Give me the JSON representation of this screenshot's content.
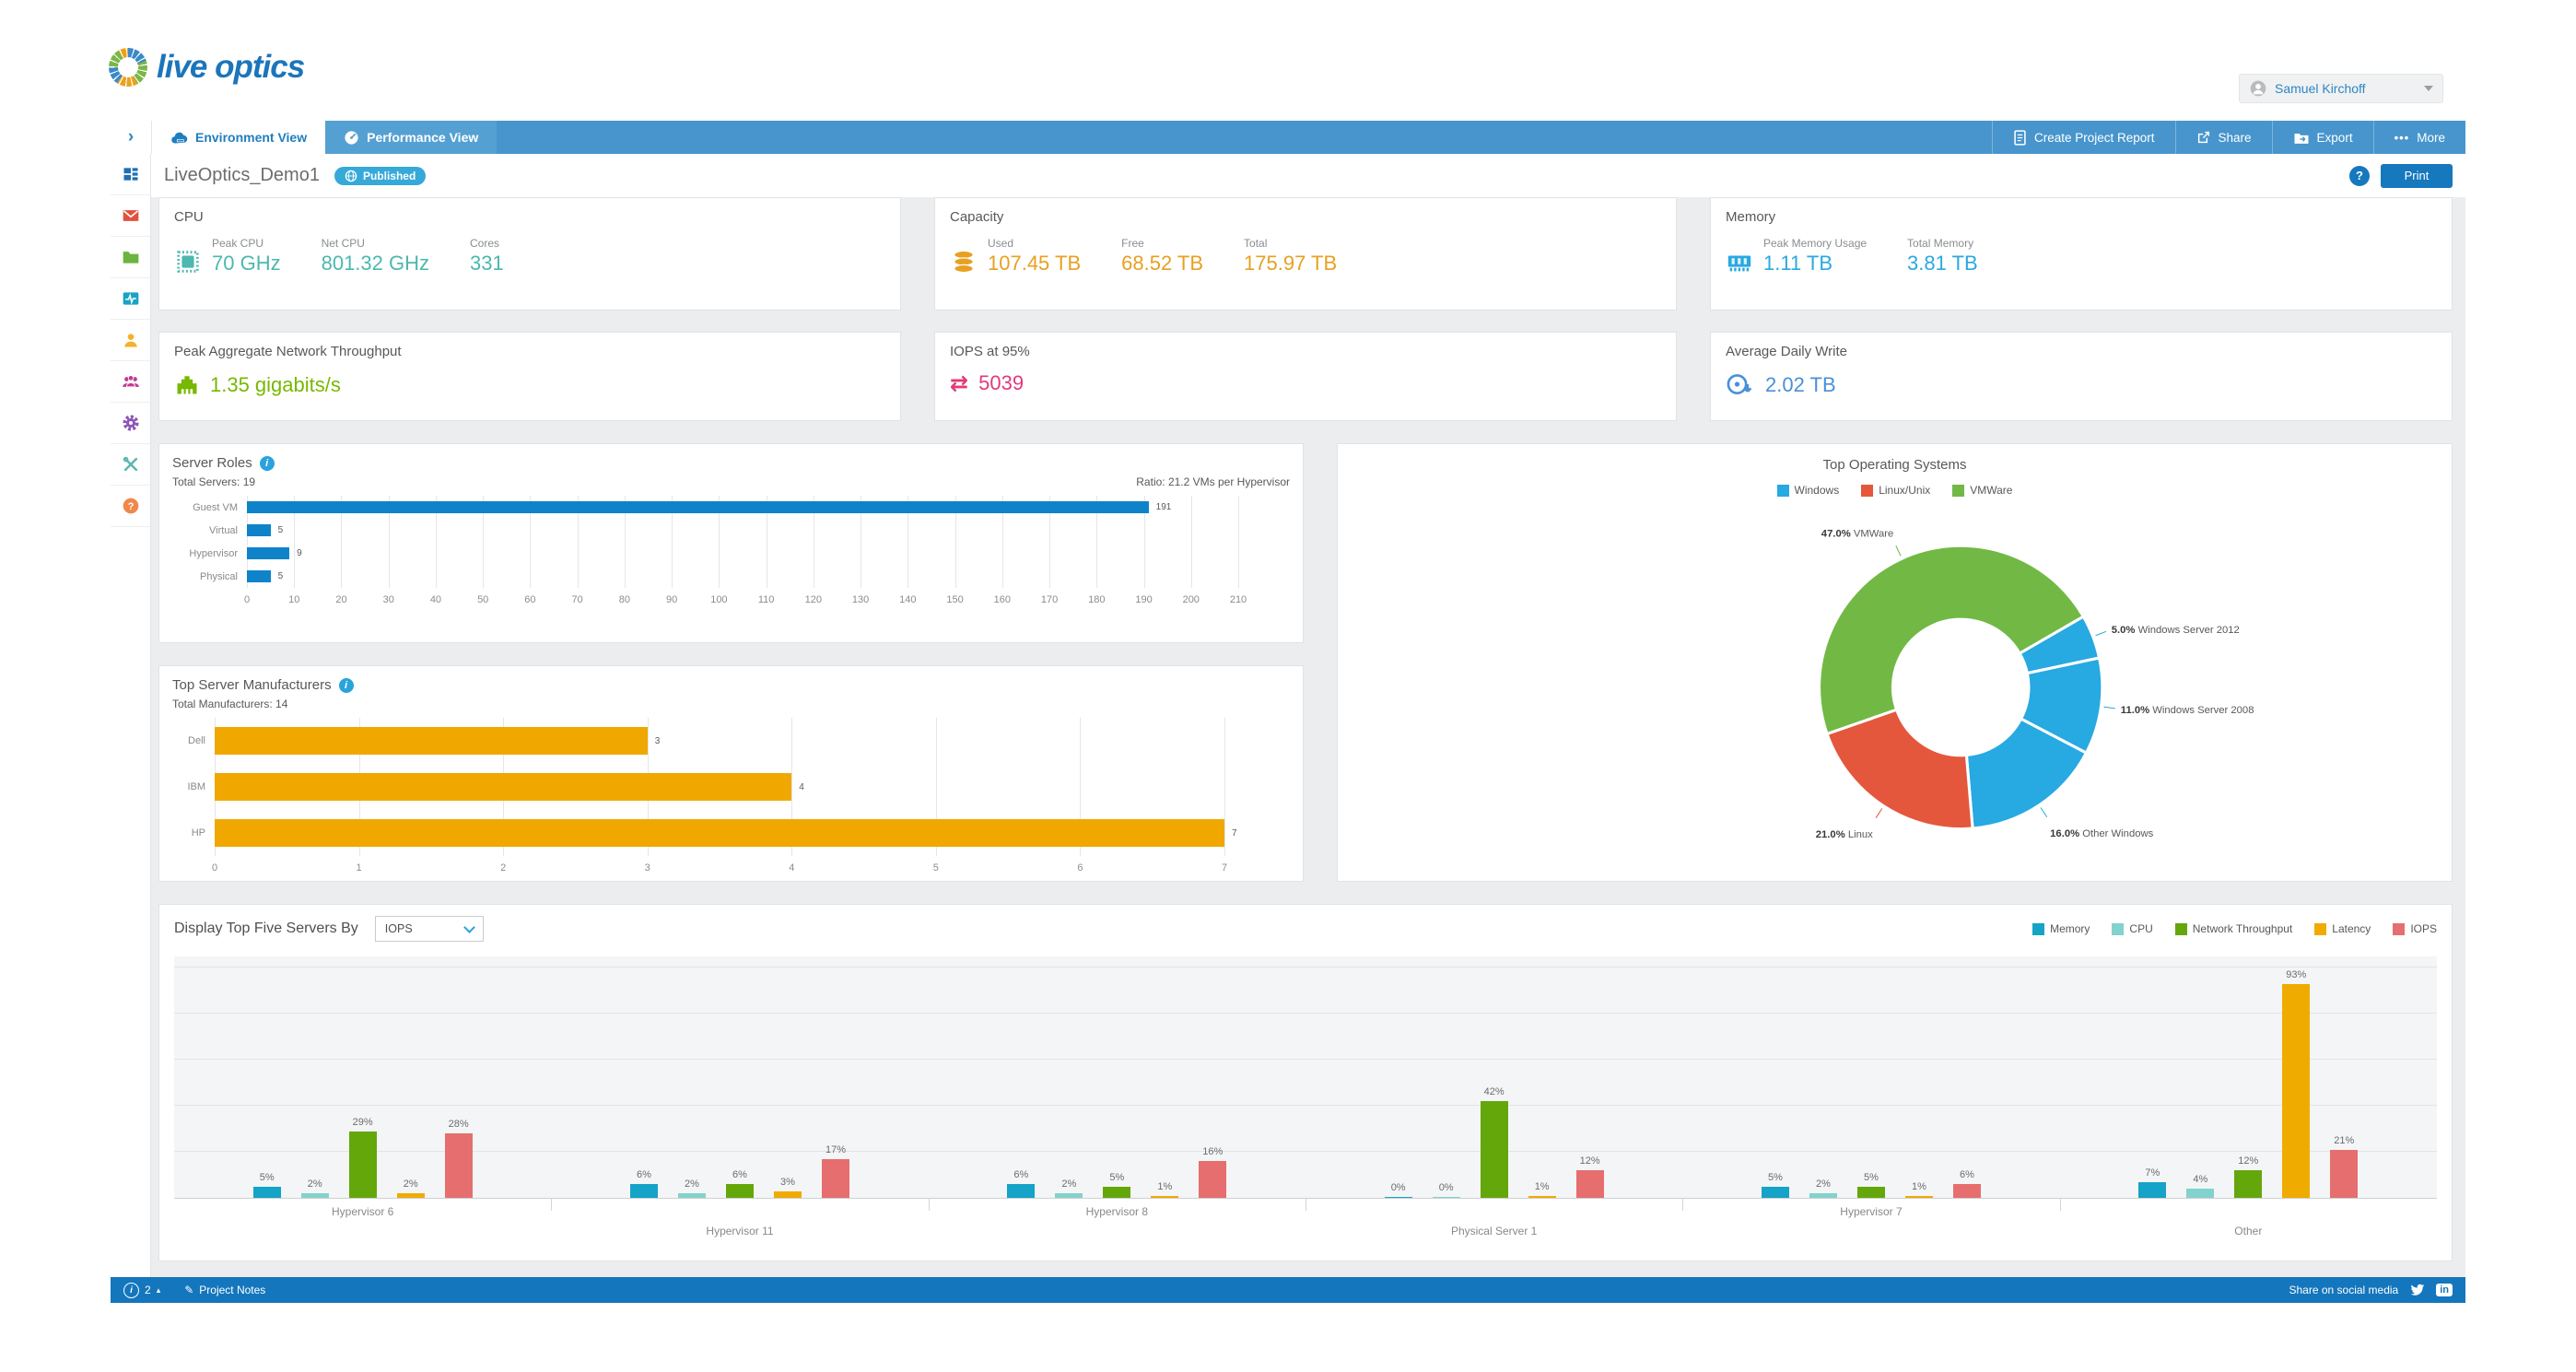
{
  "header": {
    "logo_text": "live optics",
    "user_name": "Samuel Kirchoff"
  },
  "nav": {
    "tabs": [
      {
        "label": "Environment View"
      },
      {
        "label": "Performance View"
      }
    ],
    "actions": {
      "create_report": "Create Project Report",
      "share": "Share",
      "export": "Export",
      "more": "More"
    }
  },
  "sidebar": {
    "icons": [
      "dashboard",
      "messages",
      "projects",
      "performance",
      "profile",
      "team",
      "settings",
      "tools",
      "help"
    ]
  },
  "page": {
    "title": "LiveOptics_Demo1",
    "status_badge": "Published",
    "print_label": "Print"
  },
  "icons": {
    "collapse_chevron": "›",
    "more_dots": "•••",
    "help_glyph": "?",
    "info_glyph": "i",
    "caret_up": "▴",
    "transfer_arrows": "⇄",
    "notes_pencil": "✎",
    "linkedin_glyph": "in"
  },
  "stat_cards": [
    {
      "title": "CPU",
      "color": "#4cb8af",
      "icon": "cpu-chip",
      "metrics": [
        {
          "label": "Peak CPU",
          "value": "70 GHz"
        },
        {
          "label": "Net CPU",
          "value": "801.32 GHz"
        },
        {
          "label": "Cores",
          "value": "331"
        }
      ]
    },
    {
      "title": "Capacity",
      "color": "#e8a021",
      "icon": "storage-disks",
      "metrics": [
        {
          "label": "Used",
          "value": "107.45 TB"
        },
        {
          "label": "Free",
          "value": "68.52 TB"
        },
        {
          "label": "Total",
          "value": "175.97 TB"
        }
      ]
    },
    {
      "title": "Memory",
      "color": "#29a9e0",
      "icon": "memory-stick",
      "metrics": [
        {
          "label": "Peak Memory Usage",
          "value": "1.11 TB"
        },
        {
          "label": "Total Memory",
          "value": "3.81 TB"
        }
      ]
    },
    {
      "title": "Peak Aggregate Network Throughput",
      "color": "#77b800",
      "icon": "ethernet-port",
      "metrics": [
        {
          "label": "",
          "value": "1.35 gigabits/s"
        }
      ]
    },
    {
      "title": "IOPS at 95%",
      "color": "#e23a7a",
      "icon": "transfer-arrows",
      "metrics": [
        {
          "label": "",
          "value": "5039"
        }
      ]
    },
    {
      "title": "Average Daily Write",
      "color": "#4a90d9",
      "icon": "disk-write",
      "metrics": [
        {
          "label": "",
          "value": "2.02 TB"
        }
      ]
    }
  ],
  "chart_data": [
    {
      "id": "server_roles",
      "type": "bar",
      "orientation": "horizontal",
      "title": "Server Roles",
      "subtitle_left": "Total Servers: 19",
      "subtitle_right": "Ratio: 21.2 VMs per Hypervisor",
      "categories": [
        "Guest VM",
        "Virtual",
        "Hypervisor",
        "Physical"
      ],
      "values": [
        191,
        5,
        9,
        5
      ],
      "bar_color": "#0e83c9",
      "xlim": [
        0,
        210
      ],
      "tick_step": 10
    },
    {
      "id": "top_manufacturers",
      "type": "bar",
      "orientation": "horizontal",
      "title": "Top Server Manufacturers",
      "subtitle_left": "Total Manufacturers: 14",
      "categories": [
        "Dell",
        "IBM",
        "HP"
      ],
      "values": [
        3,
        4,
        7
      ],
      "bar_color": "#f0a800",
      "xlim": [
        0,
        7
      ],
      "tick_step": 1
    },
    {
      "id": "top_operating_systems",
      "type": "pie",
      "title": "Top Operating Systems",
      "legend": [
        {
          "label": "Windows",
          "color": "#27a9e1"
        },
        {
          "label": "Linux/Unix",
          "color": "#e4573d"
        },
        {
          "label": "VMWare",
          "color": "#71b944"
        }
      ],
      "start_angle": 60,
      "slices": [
        {
          "pct": 5.0,
          "pct_label": "5.0%",
          "name": "Windows Server 2012",
          "color": "#27a9e1"
        },
        {
          "pct": 11.0,
          "pct_label": "11.0%",
          "name": "Windows Server 2008",
          "color": "#27a9e1"
        },
        {
          "pct": 16.0,
          "pct_label": "16.0%",
          "name": "Other Windows",
          "color": "#27a9e1"
        },
        {
          "pct": 21.0,
          "pct_label": "21.0%",
          "name": "Linux",
          "color": "#e4573d"
        },
        {
          "pct": 47.0,
          "pct_label": "47.0%",
          "name": "VMWare",
          "color": "#71b944"
        }
      ]
    },
    {
      "id": "top_servers",
      "type": "bar",
      "grouped": true,
      "title": "Display Top Five Servers By",
      "dropdown_value": "IOPS",
      "series": [
        {
          "name": "Memory",
          "color": "#15a3c7"
        },
        {
          "name": "CPU",
          "color": "#82d2cd"
        },
        {
          "name": "Network Throughput",
          "color": "#64a70b"
        },
        {
          "name": "Latency",
          "color": "#f0ab00"
        },
        {
          "name": "IOPS",
          "color": "#e66e6e"
        }
      ],
      "categories": [
        "Hypervisor 6",
        "Hypervisor 11",
        "Hypervisor 8",
        "Physical Server 1",
        "Hypervisor 7",
        "Other"
      ],
      "values": [
        [
          5,
          2,
          29,
          2,
          28
        ],
        [
          6,
          2,
          6,
          3,
          17
        ],
        [
          6,
          2,
          5,
          1,
          16
        ],
        [
          0,
          0,
          42,
          1,
          12
        ],
        [
          5,
          2,
          5,
          1,
          6
        ],
        [
          7,
          4,
          12,
          93,
          21
        ]
      ],
      "ylim": [
        0,
        100
      ],
      "grid_step": 20
    }
  ],
  "footer": {
    "count": "2",
    "notes_label": "Project Notes",
    "share_label": "Share on social media"
  }
}
